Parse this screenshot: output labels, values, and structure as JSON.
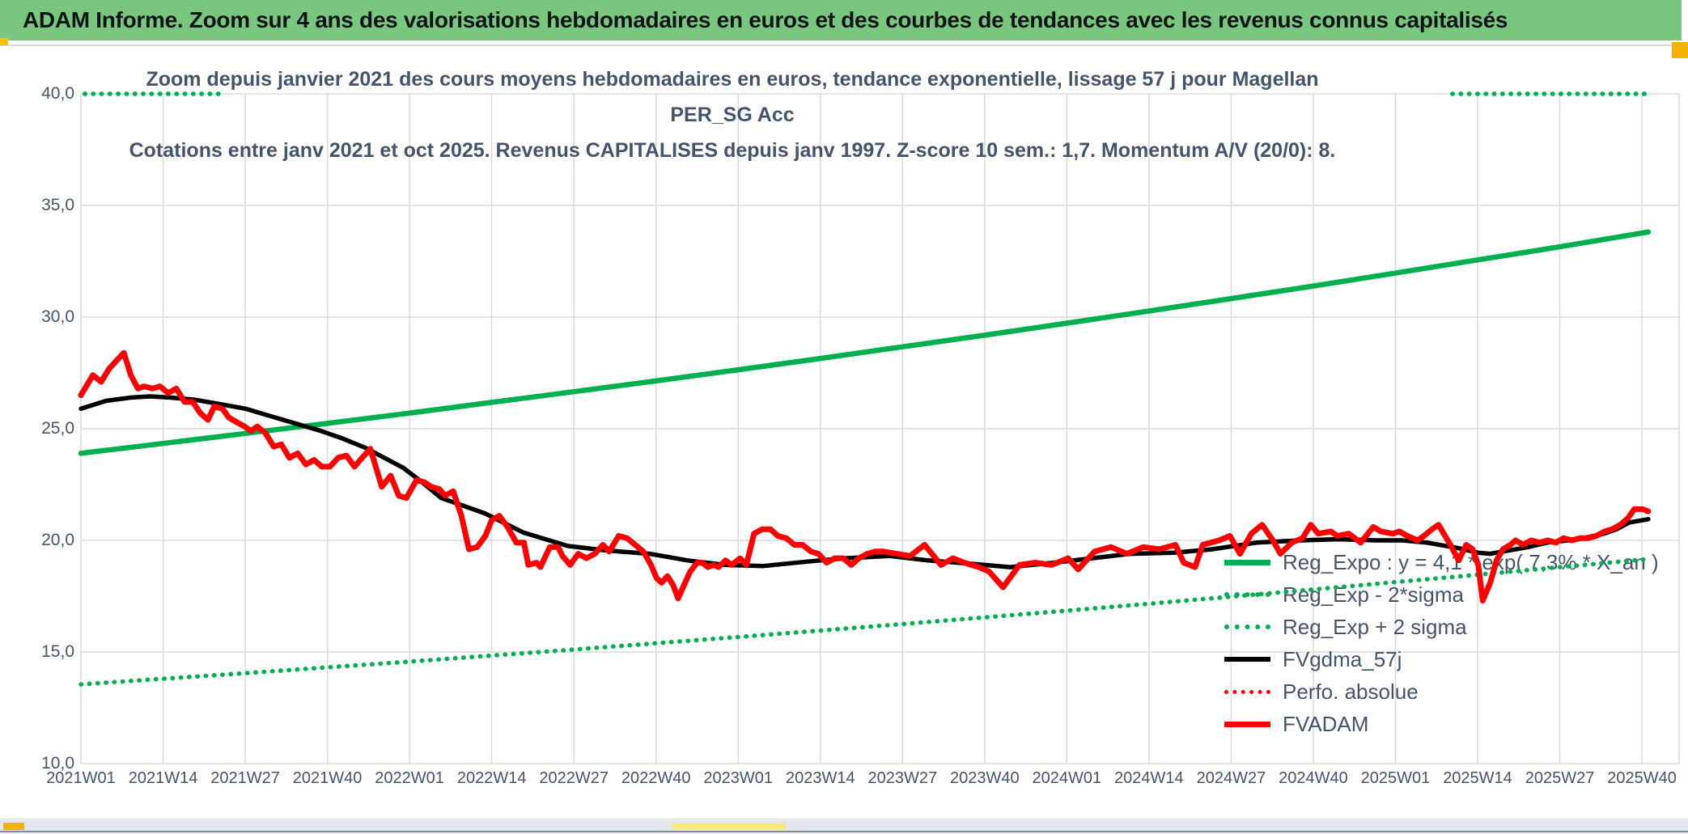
{
  "window": {
    "title": "ADAM Informe. Zoom sur 4 ans des valorisations hebdomadaires en euros et des courbes de tendances avec les revenus connus capitalisés",
    "titlebar_bg": "#79C67E",
    "accent_amber": "#F2B200",
    "accent_yellow": "#FFC000",
    "scroll_thumb_yellow": "#F6E87E"
  },
  "chart": {
    "subtitle_line1": "Zoom depuis janvier 2021 des cours moyens hebdomadaires en euros, tendance exponentielle, lissage 57 j pour Magellan PER_SG Acc",
    "subtitle_line2": "Cotations entre janv 2021 et oct 2025. Revenus CAPITALISES depuis janv 1997. Z-score 10 sem.: 1,7. Momentum A/V (20/0): 8.",
    "text_color": "#44546A",
    "gridline_color": "#D9D9D9"
  },
  "chart_data": {
    "type": "line",
    "title": "Zoom depuis janvier 2021 des cours moyens hebdomadaires en euros, tendance exponentielle, lissage 57 j pour Magellan PER_SG Acc",
    "subtitle": "Cotations entre janv 2021 et oct 2025. Revenus CAPITALISES depuis janv 1997. Z-score 10 sem.: 1,7. Momentum A/V (20/0): 8.",
    "xlabel": "",
    "ylabel": "",
    "grid": true,
    "legend_position": "inside-right",
    "y_axis": {
      "min": 10,
      "max": 40,
      "step": 5,
      "labels": [
        "40,0",
        "35,0",
        "30,0",
        "25,0",
        "20,0",
        "15,0",
        "10,0"
      ]
    },
    "x_axis": {
      "unit": "ISO week",
      "weeks_per_gridline": 13,
      "total_weeks": 248,
      "labels": [
        "2021W01",
        "2021W14",
        "2021W27",
        "2021W40",
        "2022W01",
        "2022W14",
        "2022W27",
        "2022W40",
        "2023W01",
        "2023W14",
        "2023W27",
        "2023W40",
        "2024W01",
        "2024W14",
        "2024W27",
        "2024W40",
        "2025W01",
        "2025W14",
        "2025W27",
        "2025W40"
      ]
    },
    "series": [
      {
        "name": "Reg_Expo : y = 4,1 * exp( 7,3% * X_an )",
        "color": "#00B050",
        "style": "solid",
        "width": 6.5,
        "points": [
          [
            0,
            23.9
          ],
          [
            13,
            24.34
          ],
          [
            26,
            24.79
          ],
          [
            39,
            25.24
          ],
          [
            52,
            25.7
          ],
          [
            65,
            26.18
          ],
          [
            78,
            26.66
          ],
          [
            91,
            27.14
          ],
          [
            104,
            27.64
          ],
          [
            117,
            28.15
          ],
          [
            130,
            28.67
          ],
          [
            143,
            29.19
          ],
          [
            156,
            29.73
          ],
          [
            169,
            30.27
          ],
          [
            182,
            30.83
          ],
          [
            195,
            31.39
          ],
          [
            208,
            31.97
          ],
          [
            221,
            32.56
          ],
          [
            234,
            33.15
          ],
          [
            248,
            33.81
          ]
        ]
      },
      {
        "name": "Reg_Exp - 2*sigma",
        "color": "#00B050",
        "style": "dotted",
        "width": 5.5,
        "points": [
          [
            0,
            13.55
          ],
          [
            13,
            13.8
          ],
          [
            26,
            14.05
          ],
          [
            39,
            14.31
          ],
          [
            52,
            14.57
          ],
          [
            65,
            14.84
          ],
          [
            78,
            15.11
          ],
          [
            91,
            15.39
          ],
          [
            104,
            15.67
          ],
          [
            117,
            15.96
          ],
          [
            130,
            16.25
          ],
          [
            143,
            16.55
          ],
          [
            156,
            16.85
          ],
          [
            169,
            17.16
          ],
          [
            182,
            17.48
          ],
          [
            195,
            17.8
          ],
          [
            208,
            18.13
          ],
          [
            221,
            18.46
          ],
          [
            234,
            18.8
          ],
          [
            248,
            19.16
          ]
        ]
      },
      {
        "name": "Reg_Exp + 2 sigma",
        "color": "#00B050",
        "style": "dotted",
        "width": 5.5,
        "note": "values above axis max, visible only clipped at 40.0",
        "segments": [
          [
            [
              0.6,
              40
            ],
            [
              23,
              40
            ]
          ],
          [
            [
              217,
              40
            ],
            [
              248,
              40
            ]
          ]
        ]
      },
      {
        "name": "FVgdma_57j",
        "color": "#000000",
        "style": "solid",
        "width": 5.5,
        "points": [
          [
            0,
            25.9
          ],
          [
            4,
            26.25
          ],
          [
            8,
            26.4
          ],
          [
            11,
            26.45
          ],
          [
            14,
            26.4
          ],
          [
            18,
            26.3
          ],
          [
            22,
            26.1
          ],
          [
            26,
            25.9
          ],
          [
            29,
            25.65
          ],
          [
            32,
            25.4
          ],
          [
            35,
            25.15
          ],
          [
            38,
            24.9
          ],
          [
            41.5,
            24.55
          ],
          [
            45,
            24.15
          ],
          [
            48,
            23.7
          ],
          [
            51,
            23.25
          ],
          [
            54,
            22.6
          ],
          [
            57,
            21.9
          ],
          [
            60.5,
            21.55
          ],
          [
            64,
            21.2
          ],
          [
            70,
            20.35
          ],
          [
            77,
            19.75
          ],
          [
            83,
            19.55
          ],
          [
            90,
            19.4
          ],
          [
            96,
            19.1
          ],
          [
            102,
            18.9
          ],
          [
            108,
            18.85
          ],
          [
            115,
            19.05
          ],
          [
            121,
            19.2
          ],
          [
            128,
            19.3
          ],
          [
            134,
            19.1
          ],
          [
            141,
            18.95
          ],
          [
            147,
            18.8
          ],
          [
            154,
            19
          ],
          [
            160,
            19.2
          ],
          [
            166,
            19.4
          ],
          [
            173,
            19.45
          ],
          [
            179,
            19.6
          ],
          [
            186,
            19.9
          ],
          [
            193,
            20
          ],
          [
            199,
            20.05
          ],
          [
            205,
            20
          ],
          [
            209,
            20
          ],
          [
            213,
            19.9
          ],
          [
            218,
            19.65
          ],
          [
            221,
            19.45
          ],
          [
            223,
            19.4
          ],
          [
            226,
            19.55
          ],
          [
            229,
            19.7
          ],
          [
            232,
            19.9
          ],
          [
            237,
            20.05
          ],
          [
            241,
            20.3
          ],
          [
            243,
            20.5
          ],
          [
            245,
            20.8
          ],
          [
            248,
            20.95
          ]
        ]
      },
      {
        "name": "Perfo. absolue",
        "color": "#FF0000",
        "style": "dotted",
        "width": 4.5,
        "points": []
      },
      {
        "name": "FVADAM",
        "color": "#FF0000",
        "style": "solid",
        "width": 7,
        "points": [
          [
            0,
            26.5
          ],
          [
            1.9,
            27.4
          ],
          [
            3.2,
            27.1
          ],
          [
            4.5,
            27.7
          ],
          [
            5.8,
            28.1
          ],
          [
            6.8,
            28.4
          ],
          [
            7.9,
            27.4
          ],
          [
            9,
            26.8
          ],
          [
            10,
            26.9
          ],
          [
            11.3,
            26.8
          ],
          [
            12.5,
            26.9
          ],
          [
            13.8,
            26.6
          ],
          [
            15.1,
            26.8
          ],
          [
            16.4,
            26.2
          ],
          [
            17.7,
            26.2
          ],
          [
            18.9,
            25.7
          ],
          [
            20.1,
            25.4
          ],
          [
            21.1,
            26
          ],
          [
            22.4,
            25.9
          ],
          [
            23.4,
            25.5
          ],
          [
            24.6,
            25.3
          ],
          [
            25.9,
            25.1
          ],
          [
            26.9,
            24.9
          ],
          [
            27.9,
            25.1
          ],
          [
            29.2,
            24.8
          ],
          [
            30.5,
            24.2
          ],
          [
            31.7,
            24.3
          ],
          [
            33,
            23.7
          ],
          [
            34.3,
            23.9
          ],
          [
            35.6,
            23.4
          ],
          [
            36.9,
            23.6
          ],
          [
            38.1,
            23.3
          ],
          [
            39.4,
            23.3
          ],
          [
            40.7,
            23.7
          ],
          [
            42,
            23.8
          ],
          [
            43.3,
            23.3
          ],
          [
            44.5,
            23.7
          ],
          [
            45.8,
            24.1
          ],
          [
            47.6,
            22.4
          ],
          [
            49,
            22.9
          ],
          [
            50.3,
            22
          ],
          [
            51.5,
            21.9
          ],
          [
            53.1,
            22.7
          ],
          [
            54.4,
            22.6
          ],
          [
            55.4,
            22.4
          ],
          [
            56.7,
            22.3
          ],
          [
            57.6,
            22
          ],
          [
            58.9,
            22.2
          ],
          [
            60.2,
            21.1
          ],
          [
            61.4,
            19.6
          ],
          [
            62.7,
            19.7
          ],
          [
            64,
            20.2
          ],
          [
            65,
            20.9
          ],
          [
            66.2,
            21.1
          ],
          [
            67.5,
            20.6
          ],
          [
            68.9,
            19.9
          ],
          [
            70.1,
            19.9
          ],
          [
            70.8,
            18.9
          ],
          [
            72.1,
            19
          ],
          [
            72.7,
            18.8
          ],
          [
            74.2,
            19.7
          ],
          [
            75.5,
            19.7
          ],
          [
            76.2,
            19.3
          ],
          [
            77.4,
            18.9
          ],
          [
            78.7,
            19.4
          ],
          [
            80,
            19.2
          ],
          [
            81.3,
            19.4
          ],
          [
            82.6,
            19.8
          ],
          [
            83.6,
            19.5
          ],
          [
            85.1,
            20.2
          ],
          [
            86.4,
            20.1
          ],
          [
            87.7,
            19.8
          ],
          [
            89,
            19.5
          ],
          [
            90.2,
            18.9
          ],
          [
            91.1,
            18.3
          ],
          [
            91.9,
            18.1
          ],
          [
            92.8,
            18.4
          ],
          [
            93.7,
            18
          ],
          [
            94.5,
            17.4
          ],
          [
            95.6,
            18.1
          ],
          [
            96.4,
            18.6
          ],
          [
            97.5,
            19
          ],
          [
            98.3,
            19
          ],
          [
            99.2,
            18.8
          ],
          [
            100.1,
            18.9
          ],
          [
            100.9,
            18.8
          ],
          [
            102,
            19.1
          ],
          [
            103,
            18.9
          ],
          [
            104.3,
            19.2
          ],
          [
            105.3,
            18.9
          ],
          [
            106.5,
            20.3
          ],
          [
            107.8,
            20.5
          ],
          [
            109.1,
            20.5
          ],
          [
            110.3,
            20.2
          ],
          [
            111.6,
            20.1
          ],
          [
            112.9,
            19.8
          ],
          [
            114.2,
            19.8
          ],
          [
            115.5,
            19.5
          ],
          [
            116.7,
            19.4
          ],
          [
            118,
            19
          ],
          [
            119.3,
            19.2
          ],
          [
            120.6,
            19.2
          ],
          [
            121.9,
            18.9
          ],
          [
            123.1,
            19.2
          ],
          [
            124.4,
            19.4
          ],
          [
            125.7,
            19.5
          ],
          [
            127,
            19.5
          ],
          [
            131.2,
            19.3
          ],
          [
            133.5,
            19.8
          ],
          [
            136.1,
            18.9
          ],
          [
            138,
            19.2
          ],
          [
            139.8,
            19
          ],
          [
            142.1,
            18.8
          ],
          [
            143.7,
            18.6
          ],
          [
            145.9,
            17.9
          ],
          [
            148.5,
            18.9
          ],
          [
            151,
            19
          ],
          [
            153.6,
            18.9
          ],
          [
            156.2,
            19.2
          ],
          [
            157.8,
            18.7
          ],
          [
            160.4,
            19.5
          ],
          [
            163,
            19.7
          ],
          [
            165.5,
            19.4
          ],
          [
            168.1,
            19.7
          ],
          [
            170.6,
            19.6
          ],
          [
            173.2,
            19.8
          ],
          [
            174.5,
            19
          ],
          [
            176.3,
            18.8
          ],
          [
            177.5,
            19.8
          ],
          [
            180.1,
            20
          ],
          [
            181.8,
            20.2
          ],
          [
            183.4,
            19.4
          ],
          [
            185.2,
            20.3
          ],
          [
            186.9,
            20.7
          ],
          [
            188.6,
            20
          ],
          [
            189.8,
            19.4
          ],
          [
            191.6,
            19.9
          ],
          [
            193.3,
            20.1
          ],
          [
            194.6,
            20.7
          ],
          [
            195.8,
            20.3
          ],
          [
            197.8,
            20.4
          ],
          [
            198.8,
            20.2
          ],
          [
            200.6,
            20.3
          ],
          [
            202.5,
            19.9
          ],
          [
            204.5,
            20.6
          ],
          [
            205.7,
            20.4
          ],
          [
            207.6,
            20.3
          ],
          [
            208.6,
            20.4
          ],
          [
            209.9,
            20.2
          ],
          [
            211.5,
            20
          ],
          [
            212.5,
            20.2
          ],
          [
            213.8,
            20.5
          ],
          [
            214.8,
            20.7
          ],
          [
            216.7,
            19.8
          ],
          [
            218,
            19.1
          ],
          [
            219.2,
            19.8
          ],
          [
            220.2,
            19.6
          ],
          [
            221.1,
            18.9
          ],
          [
            221.8,
            17.3
          ],
          [
            223,
            18.1
          ],
          [
            224,
            19.1
          ],
          [
            225,
            19.6
          ],
          [
            226.2,
            19.8
          ],
          [
            227,
            20
          ],
          [
            228.2,
            19.8
          ],
          [
            229.5,
            20
          ],
          [
            230.8,
            19.9
          ],
          [
            232.1,
            20
          ],
          [
            233.4,
            19.9
          ],
          [
            234.6,
            20.1
          ],
          [
            235.9,
            20
          ],
          [
            237.2,
            20.1
          ],
          [
            238.5,
            20.1
          ],
          [
            239.8,
            20.2
          ],
          [
            241.1,
            20.4
          ],
          [
            242.3,
            20.5
          ],
          [
            243.6,
            20.7
          ],
          [
            244.8,
            21
          ],
          [
            245.8,
            21.4
          ],
          [
            247.1,
            21.4
          ],
          [
            248,
            21.3
          ]
        ]
      }
    ]
  }
}
